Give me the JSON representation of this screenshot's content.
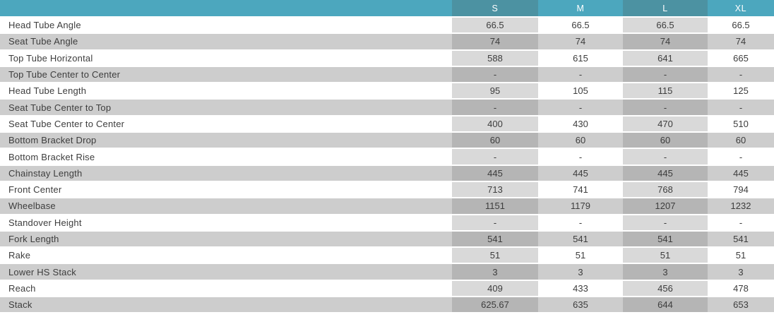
{
  "colors": {
    "header_bg": "#4CA7BE",
    "header_bg_dark": "#4C92A2",
    "row_white": "#FFFFFF",
    "row_gray": "#CDCDCD",
    "column_shade_on_white": "#D9D9D9",
    "column_shade_on_gray": "#B5B5B5",
    "text": "#3D3D3D",
    "header_text": "#FFFFFF"
  },
  "chart_data": {
    "type": "table",
    "columns": [
      "S",
      "M",
      "L",
      "XL"
    ],
    "shaded_columns": [
      "S",
      "L"
    ],
    "rows": [
      {
        "label": "Head Tube Angle",
        "values": [
          "66.5",
          "66.5",
          "66.5",
          "66.5"
        ]
      },
      {
        "label": "Seat Tube Angle",
        "values": [
          "74",
          "74",
          "74",
          "74"
        ]
      },
      {
        "label": "Top Tube Horizontal",
        "values": [
          "588",
          "615",
          "641",
          "665"
        ]
      },
      {
        "label": "Top Tube Center to Center",
        "values": [
          "-",
          "-",
          "-",
          "-"
        ]
      },
      {
        "label": "Head Tube Length",
        "values": [
          "95",
          "105",
          "115",
          "125"
        ]
      },
      {
        "label": "Seat Tube Center to Top",
        "values": [
          "-",
          "-",
          "-",
          "-"
        ]
      },
      {
        "label": "Seat Tube Center to Center",
        "values": [
          "400",
          "430",
          "470",
          "510"
        ]
      },
      {
        "label": "Bottom Bracket Drop",
        "values": [
          "60",
          "60",
          "60",
          "60"
        ]
      },
      {
        "label": "Bottom Bracket Rise",
        "values": [
          "-",
          "-",
          "-",
          "-"
        ]
      },
      {
        "label": "Chainstay Length",
        "values": [
          "445",
          "445",
          "445",
          "445"
        ]
      },
      {
        "label": "Front Center",
        "values": [
          "713",
          "741",
          "768",
          "794"
        ]
      },
      {
        "label": "Wheelbase",
        "values": [
          "1151",
          "1179",
          "1207",
          "1232"
        ]
      },
      {
        "label": "Standover Height",
        "values": [
          "-",
          "-",
          "-",
          "-"
        ]
      },
      {
        "label": "Fork Length",
        "values": [
          "541",
          "541",
          "541",
          "541"
        ]
      },
      {
        "label": "Rake",
        "values": [
          "51",
          "51",
          "51",
          "51"
        ]
      },
      {
        "label": "Lower HS Stack",
        "values": [
          "3",
          "3",
          "3",
          "3"
        ]
      },
      {
        "label": "Reach",
        "values": [
          "409",
          "433",
          "456",
          "478"
        ]
      },
      {
        "label": "Stack",
        "values": [
          "625.67",
          "635",
          "644",
          "653"
        ]
      }
    ]
  }
}
